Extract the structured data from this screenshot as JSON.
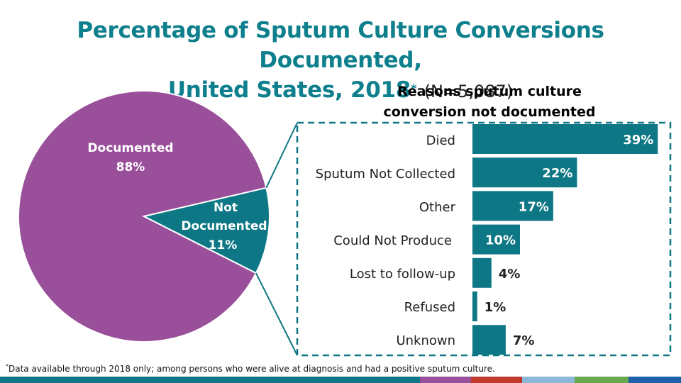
{
  "title": {
    "line1": "Percentage of Sputum Culture Conversions Documented,",
    "line2": "United States, 2018",
    "asterisk": "*",
    "n_label": "(N=5,087)"
  },
  "chart_data": [
    {
      "type": "pie",
      "title": "",
      "slices": [
        {
          "label_line1": "Documented",
          "label_line2": "",
          "value_label": "88%",
          "value": 88,
          "color": "#9a4f9b"
        },
        {
          "label_line1": "Not",
          "label_line2": "Documented",
          "value_label": "11%",
          "value": 11,
          "color": "#0e7785"
        }
      ]
    },
    {
      "type": "bar",
      "orientation": "horizontal",
      "title_line1": "Reasons sputum culture",
      "title_line2": "conversion not documented",
      "categories": [
        "Died",
        "Sputum Not Collected",
        "Other",
        "Could Not Produce",
        "Lost to follow-up",
        "Refused",
        "Unknown"
      ],
      "values": [
        39,
        22,
        17,
        10,
        4,
        1,
        7
      ],
      "value_labels": [
        "39%",
        "22%",
        "17%",
        "10%",
        "4%",
        "1%",
        "7%"
      ],
      "xlim": [
        0,
        40
      ],
      "color": "#0e7785"
    }
  ],
  "footnote": {
    "marker": "*",
    "text": "Data available through 2018 only; among persons who were alive at diagnosis and had a positive sputum culture."
  },
  "colors": {
    "title": "#0e7f8c",
    "bottom_bar": [
      "#0e7785",
      "#0e7785",
      "#9a4f9b",
      "#c0392b",
      "#8bb8d8",
      "#6aa84f",
      "#1d5fa8"
    ]
  }
}
